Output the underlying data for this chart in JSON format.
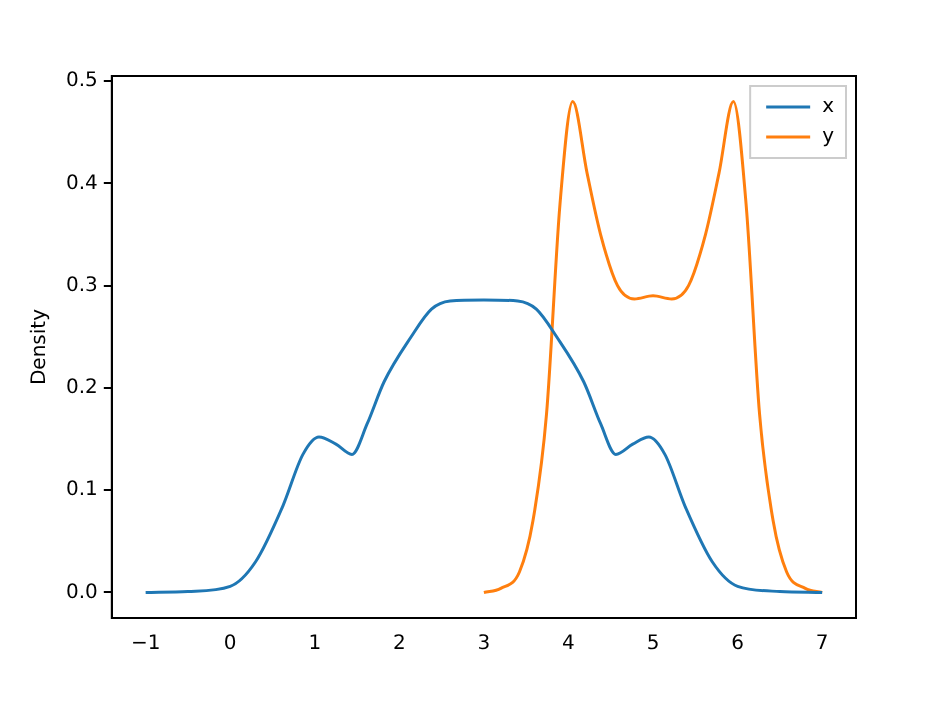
{
  "chart_data": {
    "type": "line",
    "ylabel": "Density",
    "xlim": [
      -1.4,
      7.4
    ],
    "xticks": [
      -1,
      0,
      1,
      2,
      3,
      4,
      5,
      6,
      7
    ],
    "ylim": [
      -0.025,
      0.505
    ],
    "yticks": [
      {
        "value": 0,
        "label": "0.0"
      },
      0.1,
      0.2,
      0.3,
      0.4,
      0.5
    ],
    "legend": "top right",
    "grid": false,
    "series": [
      {
        "name": "x",
        "color": "#1f77b4",
        "x": [
          -1,
          -0.5,
          0,
          0.3,
          0.62,
          0.86,
          1.05,
          1.25,
          1.44,
          1.62,
          1.82,
          2.14,
          2.38,
          2.6,
          3,
          3.4,
          3.62,
          3.86,
          4.18,
          4.38,
          4.56,
          4.76,
          4.95,
          5.14,
          5.38,
          5.7,
          6,
          6.5,
          7
        ],
        "values": [
          0,
          0.001,
          0.006,
          0.03,
          0.084,
          0.135,
          0.152,
          0.145,
          0.135,
          0.165,
          0.206,
          0.25,
          0.277,
          0.285,
          0.286,
          0.285,
          0.277,
          0.25,
          0.206,
          0.165,
          0.135,
          0.145,
          0.152,
          0.135,
          0.084,
          0.03,
          0.006,
          0.001,
          0
        ]
      },
      {
        "name": "y",
        "color": "#ff7f0e",
        "x": [
          3,
          3.2,
          3.42,
          3.58,
          3.74,
          3.9,
          4.05,
          4.22,
          4.38,
          4.58,
          4.78,
          5,
          5.22,
          5.42,
          5.62,
          5.78,
          5.95,
          6.1,
          6.26,
          6.42,
          6.58,
          6.8,
          7
        ],
        "values": [
          0,
          0.004,
          0.02,
          0.07,
          0.174,
          0.38,
          0.48,
          0.41,
          0.35,
          0.3,
          0.287,
          0.29,
          0.287,
          0.3,
          0.35,
          0.41,
          0.48,
          0.38,
          0.174,
          0.07,
          0.02,
          0.004,
          0
        ]
      }
    ]
  }
}
